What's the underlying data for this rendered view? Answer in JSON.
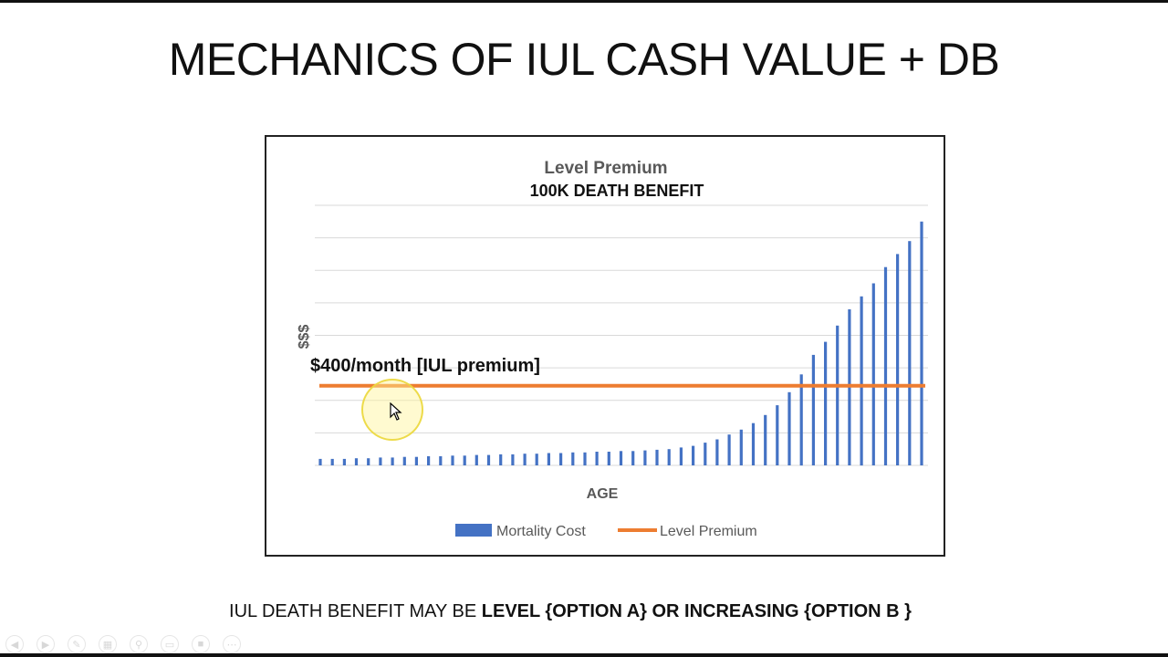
{
  "slide": {
    "title": "MECHANICS OF IUL CASH VALUE + DB",
    "footer_prefix": "IUL DEATH BENEFIT MAY BE ",
    "footer_bold": "LEVEL {OPTION A} OR INCREASING {OPTION B }"
  },
  "chart_data": {
    "type": "bar",
    "title": "Level Premium",
    "subtitle": "100K DEATH BENEFIT",
    "xlabel": "AGE",
    "ylabel": "$$$",
    "annotation": "$400/month [IUL premium]",
    "grid": true,
    "legend_position": "bottom",
    "ylim": [
      0,
      8
    ],
    "series": [
      {
        "name": "Mortality Cost",
        "type": "bar",
        "color": "#4472C4",
        "values": [
          0.2,
          0.2,
          0.2,
          0.22,
          0.22,
          0.24,
          0.24,
          0.26,
          0.26,
          0.28,
          0.28,
          0.3,
          0.3,
          0.32,
          0.32,
          0.34,
          0.34,
          0.36,
          0.36,
          0.38,
          0.38,
          0.4,
          0.4,
          0.42,
          0.42,
          0.44,
          0.44,
          0.46,
          0.48,
          0.5,
          0.55,
          0.6,
          0.7,
          0.8,
          0.95,
          1.1,
          1.3,
          1.55,
          1.85,
          2.25,
          2.8,
          3.4,
          3.8,
          4.3,
          4.8,
          5.2,
          5.6,
          6.1,
          6.5,
          6.9,
          7.5
        ]
      },
      {
        "name": "Level Premium",
        "type": "line",
        "color": "#ED7D31",
        "value": 2.45
      }
    ]
  }
}
